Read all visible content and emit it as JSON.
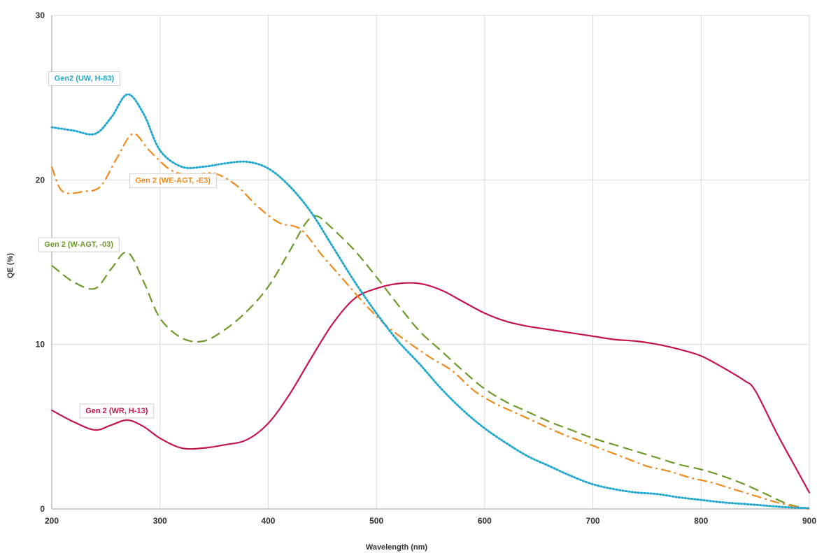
{
  "chart_data": {
    "type": "line",
    "xlabel": "Wavelength (nm)",
    "ylabel": "QE (%)",
    "xlim": [
      200,
      900
    ],
    "ylim": [
      0,
      30
    ],
    "xticks": [
      200,
      300,
      400,
      500,
      600,
      700,
      800,
      900
    ],
    "yticks": [
      0,
      10,
      20,
      30
    ],
    "grid": true,
    "series": [
      {
        "name": "Gen2 (UW, H-83)",
        "color": "#22a7cf",
        "style": "dotted",
        "x": [
          200,
          220,
          240,
          255,
          270,
          285,
          300,
          320,
          340,
          360,
          380,
          400,
          420,
          440,
          460,
          480,
          500,
          520,
          540,
          560,
          580,
          600,
          620,
          640,
          660,
          680,
          700,
          720,
          740,
          760,
          780,
          800,
          820,
          840,
          860,
          880,
          900
        ],
        "y": [
          23.2,
          23.0,
          22.8,
          23.8,
          25.2,
          24.0,
          21.8,
          20.8,
          20.8,
          21.0,
          21.1,
          20.7,
          19.6,
          18.0,
          15.9,
          13.8,
          11.9,
          10.2,
          8.8,
          7.3,
          6.0,
          4.9,
          4.0,
          3.2,
          2.6,
          2.0,
          1.5,
          1.2,
          1.0,
          0.9,
          0.7,
          0.55,
          0.4,
          0.3,
          0.2,
          0.1,
          0.05
        ]
      },
      {
        "name": "Gen 2 (WE-AGT, -E3)",
        "color": "#f08a1c",
        "style": "dashdot",
        "x": [
          200,
          210,
          230,
          245,
          260,
          275,
          290,
          310,
          330,
          350,
          370,
          390,
          410,
          430,
          450,
          470,
          490,
          510,
          530,
          550,
          570,
          590,
          610,
          630,
          650,
          670,
          690,
          710,
          730,
          750,
          770,
          790,
          810,
          830,
          850,
          870,
          890,
          900
        ],
        "y": [
          20.8,
          19.3,
          19.3,
          19.6,
          21.3,
          22.8,
          21.8,
          20.6,
          20.3,
          20.4,
          19.7,
          18.4,
          17.4,
          17.0,
          15.4,
          13.9,
          12.4,
          11.1,
          10.1,
          9.2,
          8.4,
          7.2,
          6.4,
          5.8,
          5.2,
          4.6,
          4.1,
          3.6,
          3.1,
          2.6,
          2.3,
          1.9,
          1.6,
          1.2,
          0.8,
          0.4,
          0.1,
          0.0
        ]
      },
      {
        "name": "Gen 2 (W-AGT, -03)",
        "color": "#6e9a2a",
        "style": "dashed",
        "x": [
          200,
          220,
          240,
          255,
          270,
          285,
          300,
          320,
          340,
          360,
          380,
          400,
          420,
          435,
          445,
          460,
          480,
          500,
          520,
          540,
          560,
          580,
          600,
          620,
          640,
          660,
          680,
          700,
          720,
          740,
          760,
          780,
          800,
          820,
          840,
          860,
          880,
          900
        ],
        "y": [
          14.8,
          13.8,
          13.4,
          14.6,
          15.6,
          13.8,
          11.6,
          10.4,
          10.2,
          10.9,
          12.0,
          13.5,
          15.7,
          17.4,
          17.8,
          17.0,
          15.7,
          14.1,
          12.4,
          10.8,
          9.6,
          8.4,
          7.3,
          6.5,
          5.9,
          5.3,
          4.8,
          4.3,
          3.9,
          3.5,
          3.1,
          2.7,
          2.4,
          2.0,
          1.5,
          0.9,
          0.3,
          0.0
        ]
      },
      {
        "name": "Gen 2 (WR, H-13)",
        "color": "#c4154b",
        "style": "solid",
        "x": [
          200,
          220,
          240,
          255,
          270,
          285,
          300,
          320,
          340,
          360,
          380,
          400,
          420,
          440,
          460,
          480,
          500,
          520,
          540,
          560,
          580,
          600,
          620,
          640,
          660,
          680,
          700,
          720,
          740,
          760,
          780,
          800,
          820,
          840,
          850,
          870,
          890,
          900
        ],
        "y": [
          6.0,
          5.3,
          4.8,
          5.1,
          5.4,
          5.0,
          4.3,
          3.7,
          3.7,
          3.9,
          4.2,
          5.2,
          7.0,
          9.2,
          11.3,
          12.8,
          13.4,
          13.7,
          13.7,
          13.3,
          12.6,
          11.9,
          11.4,
          11.1,
          10.9,
          10.7,
          10.5,
          10.3,
          10.2,
          10.0,
          9.7,
          9.3,
          8.6,
          7.8,
          7.2,
          4.6,
          2.2,
          1.0
        ]
      }
    ],
    "annotations": [
      {
        "text": "Gen2 (UW, H-83)",
        "x": 230,
        "y": 26.2,
        "series": 0
      },
      {
        "text": "Gen 2 (WE-AGT, -E3)",
        "x": 312,
        "y": 20.0,
        "series": 1
      },
      {
        "text": "Gen 2 (W-AGT, -03)",
        "x": 225,
        "y": 16.1,
        "series": 2
      },
      {
        "text": "Gen 2 (WR, H-13)",
        "x": 260,
        "y": 6.0,
        "series": 3
      }
    ]
  }
}
